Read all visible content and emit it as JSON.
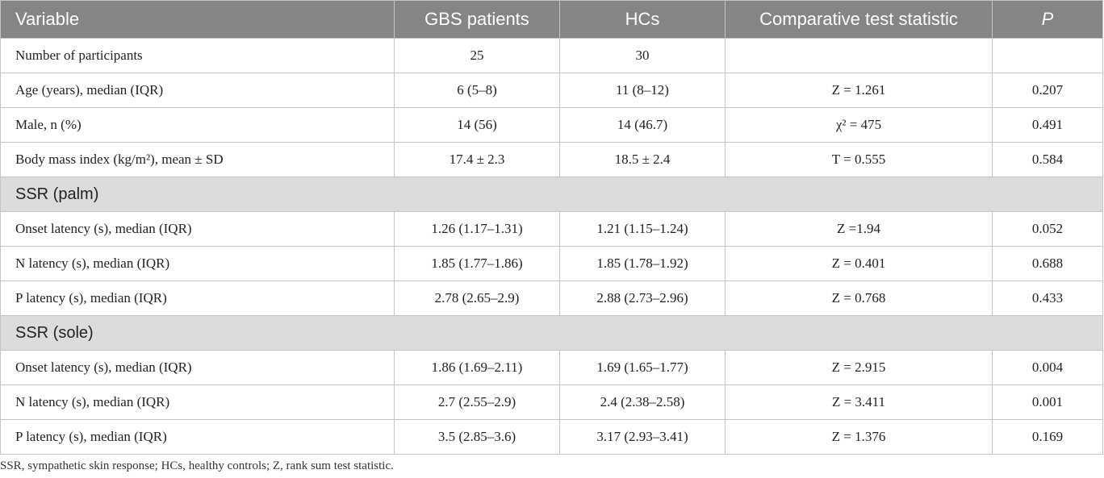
{
  "table": {
    "header": [
      "Variable",
      "GBS patients",
      "HCs",
      "Comparative test statistic",
      "P"
    ],
    "rows": [
      [
        "Number of participants",
        "25",
        "30",
        "",
        ""
      ],
      [
        "Age (years), median (IQR)",
        "6 (5–8)",
        "11 (8–12)",
        "Z = 1.261",
        "0.207"
      ],
      [
        "Male, n (%)",
        "14 (56)",
        "14 (46.7)",
        "χ² = 475",
        "0.491"
      ],
      [
        "Body mass index (kg/m²), mean ± SD",
        "17.4 ± 2.3",
        "18.5 ± 2.4",
        "T = 0.555",
        "0.584"
      ],
      [
        "SSR (palm)"
      ],
      [
        "Onset latency (s), median (IQR)",
        "1.26 (1.17–1.31)",
        "1.21 (1.15–1.24)",
        "Z =1.94",
        "0.052"
      ],
      [
        "N latency (s), median (IQR)",
        "1.85 (1.77–1.86)",
        "1.85 (1.78–1.92)",
        "Z = 0.401",
        "0.688"
      ],
      [
        "P latency (s), median (IQR)",
        "2.78 (2.65–2.9)",
        "2.88 (2.73–2.96)",
        "Z = 0.768",
        "0.433"
      ],
      [
        "SSR (sole)"
      ],
      [
        "Onset latency (s), median (IQR)",
        "1.86 (1.69–2.11)",
        "1.69 (1.65–1.77)",
        "Z = 2.915",
        "0.004"
      ],
      [
        "N latency (s), median (IQR)",
        "2.7 (2.55–2.9)",
        "2.4 (2.38–2.58)",
        "Z = 3.411",
        "0.001"
      ],
      [
        "P latency (s), median (IQR)",
        "3.5 (2.85–3.6)",
        "3.17 (2.93–3.41)",
        "Z = 1.376",
        "0.169"
      ]
    ]
  },
  "footnote": "SSR, sympathetic skin response; HCs, healthy controls; Z, rank sum test statistic."
}
